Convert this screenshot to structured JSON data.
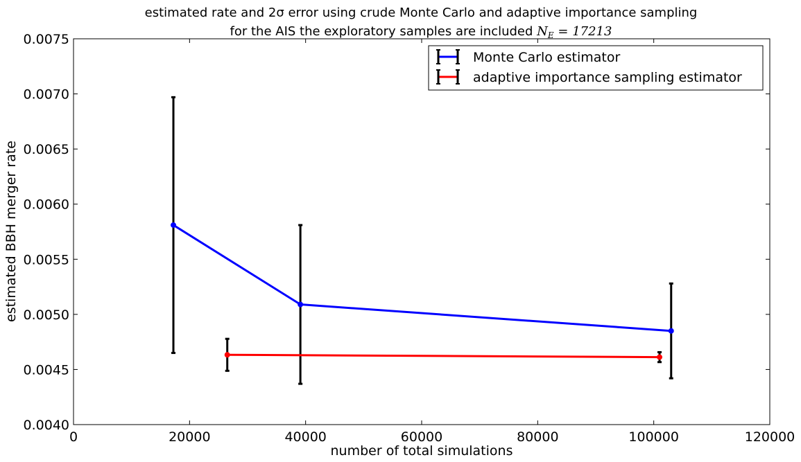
{
  "chart_data": {
    "type": "line",
    "title": "estimated rate and 2σ error using crude Monte Carlo and adaptive importance sampling",
    "subtitle_text": "for the AIS the exploratory samples are included",
    "subtitle_math": "N_E = 17213",
    "subtitle_math_parts": {
      "base": "N",
      "sub": "E",
      "rest": " = 17213"
    },
    "xlabel": "number of total simulations",
    "ylabel": "estimated BBH merger rate",
    "xlim": [
      0,
      120000
    ],
    "ylim": [
      0.004,
      0.0075
    ],
    "x_ticks": [
      0,
      20000,
      40000,
      60000,
      80000,
      100000,
      120000
    ],
    "x_tick_labels": [
      "0",
      "20000",
      "40000",
      "60000",
      "80000",
      "100000",
      "120000"
    ],
    "y_ticks": [
      0.004,
      0.0045,
      0.005,
      0.0055,
      0.006,
      0.0065,
      0.007,
      0.0075
    ],
    "y_tick_labels": [
      "0.0040",
      "0.0045",
      "0.0050",
      "0.0055",
      "0.0060",
      "0.0065",
      "0.0070",
      "0.0075"
    ],
    "grid": false,
    "legend_position": "top-right",
    "series": [
      {
        "name": "Monte Carlo estimator",
        "color": "#0000ff",
        "x": [
          17213,
          39100,
          103000
        ],
        "y": [
          0.00581,
          0.00509,
          0.00485
        ],
        "err": [
          0.00116,
          0.00072,
          0.00043
        ]
      },
      {
        "name": "adaptive importance sampling estimator",
        "color": "#ff0000",
        "x": [
          26500,
          101000
        ],
        "y": [
          0.004633,
          0.004612
        ],
        "err": [
          0.000145,
          4.5e-05
        ]
      }
    ],
    "errorbar_color": "#000000"
  }
}
